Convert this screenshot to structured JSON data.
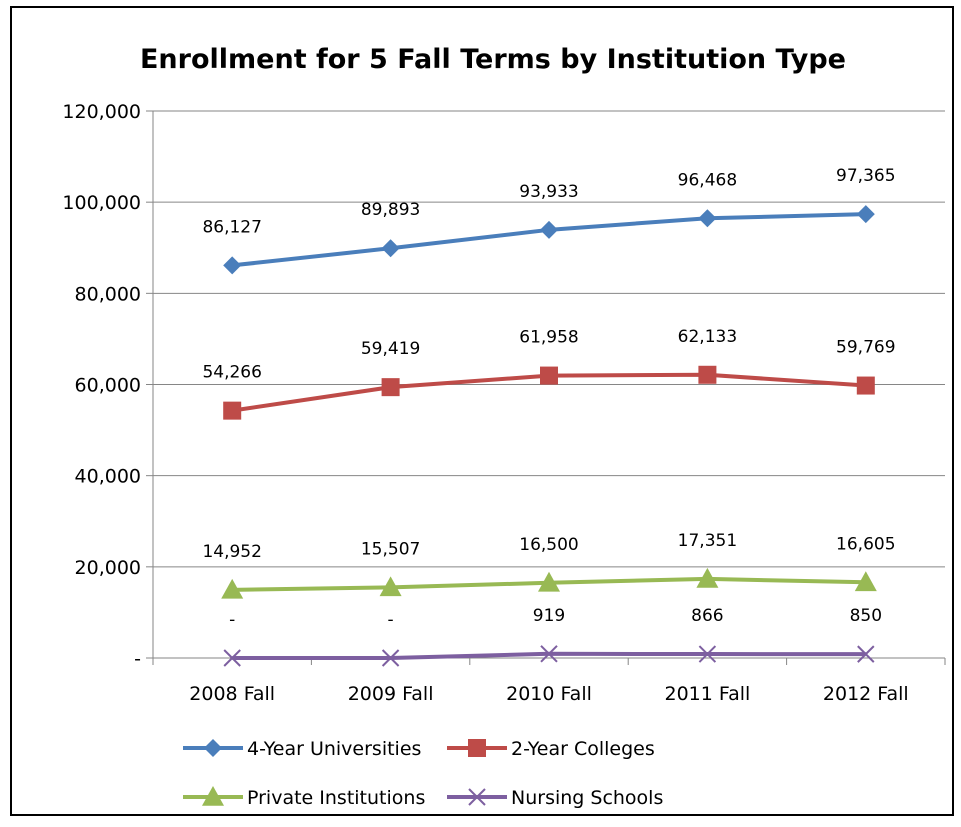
{
  "chart_data": {
    "type": "line",
    "title": "Enrollment for 5 Fall Terms by Institution Type",
    "categories": [
      "2008 Fall",
      "2009 Fall",
      "2010 Fall",
      "2011 Fall",
      "2012 Fall"
    ],
    "ylim": [
      0,
      120000
    ],
    "yticks": [
      0,
      20000,
      40000,
      60000,
      80000,
      100000,
      120000
    ],
    "ytick_labels": [
      "-",
      "20,000",
      "40,000",
      "60,000",
      "80,000",
      "100,000",
      "120,000"
    ],
    "grid": true,
    "legend_position": "bottom",
    "series": [
      {
        "name": "4-Year Universities",
        "color": "#4a7ebb",
        "marker": "diamond",
        "values": [
          86127,
          89893,
          93933,
          96468,
          97365
        ],
        "labels": [
          "86,127",
          "89,893",
          "93,933",
          "96,468",
          "97,365"
        ]
      },
      {
        "name": "2-Year Colleges",
        "color": "#be4b48",
        "marker": "square",
        "values": [
          54266,
          59419,
          61958,
          62133,
          59769
        ],
        "labels": [
          "54,266",
          "59,419",
          "61,958",
          "62,133",
          "59,769"
        ]
      },
      {
        "name": "Private Institutions",
        "color": "#98b954",
        "marker": "triangle",
        "values": [
          14952,
          15507,
          16500,
          17351,
          16605
        ],
        "labels": [
          "14,952",
          "15,507",
          "16,500",
          "17,351",
          "16,605"
        ]
      },
      {
        "name": "Nursing Schools",
        "color": "#7d5fa0",
        "marker": "x",
        "values": [
          0,
          0,
          919,
          866,
          850
        ],
        "labels": [
          "-",
          "-",
          "919",
          "866",
          "850"
        ]
      }
    ]
  }
}
